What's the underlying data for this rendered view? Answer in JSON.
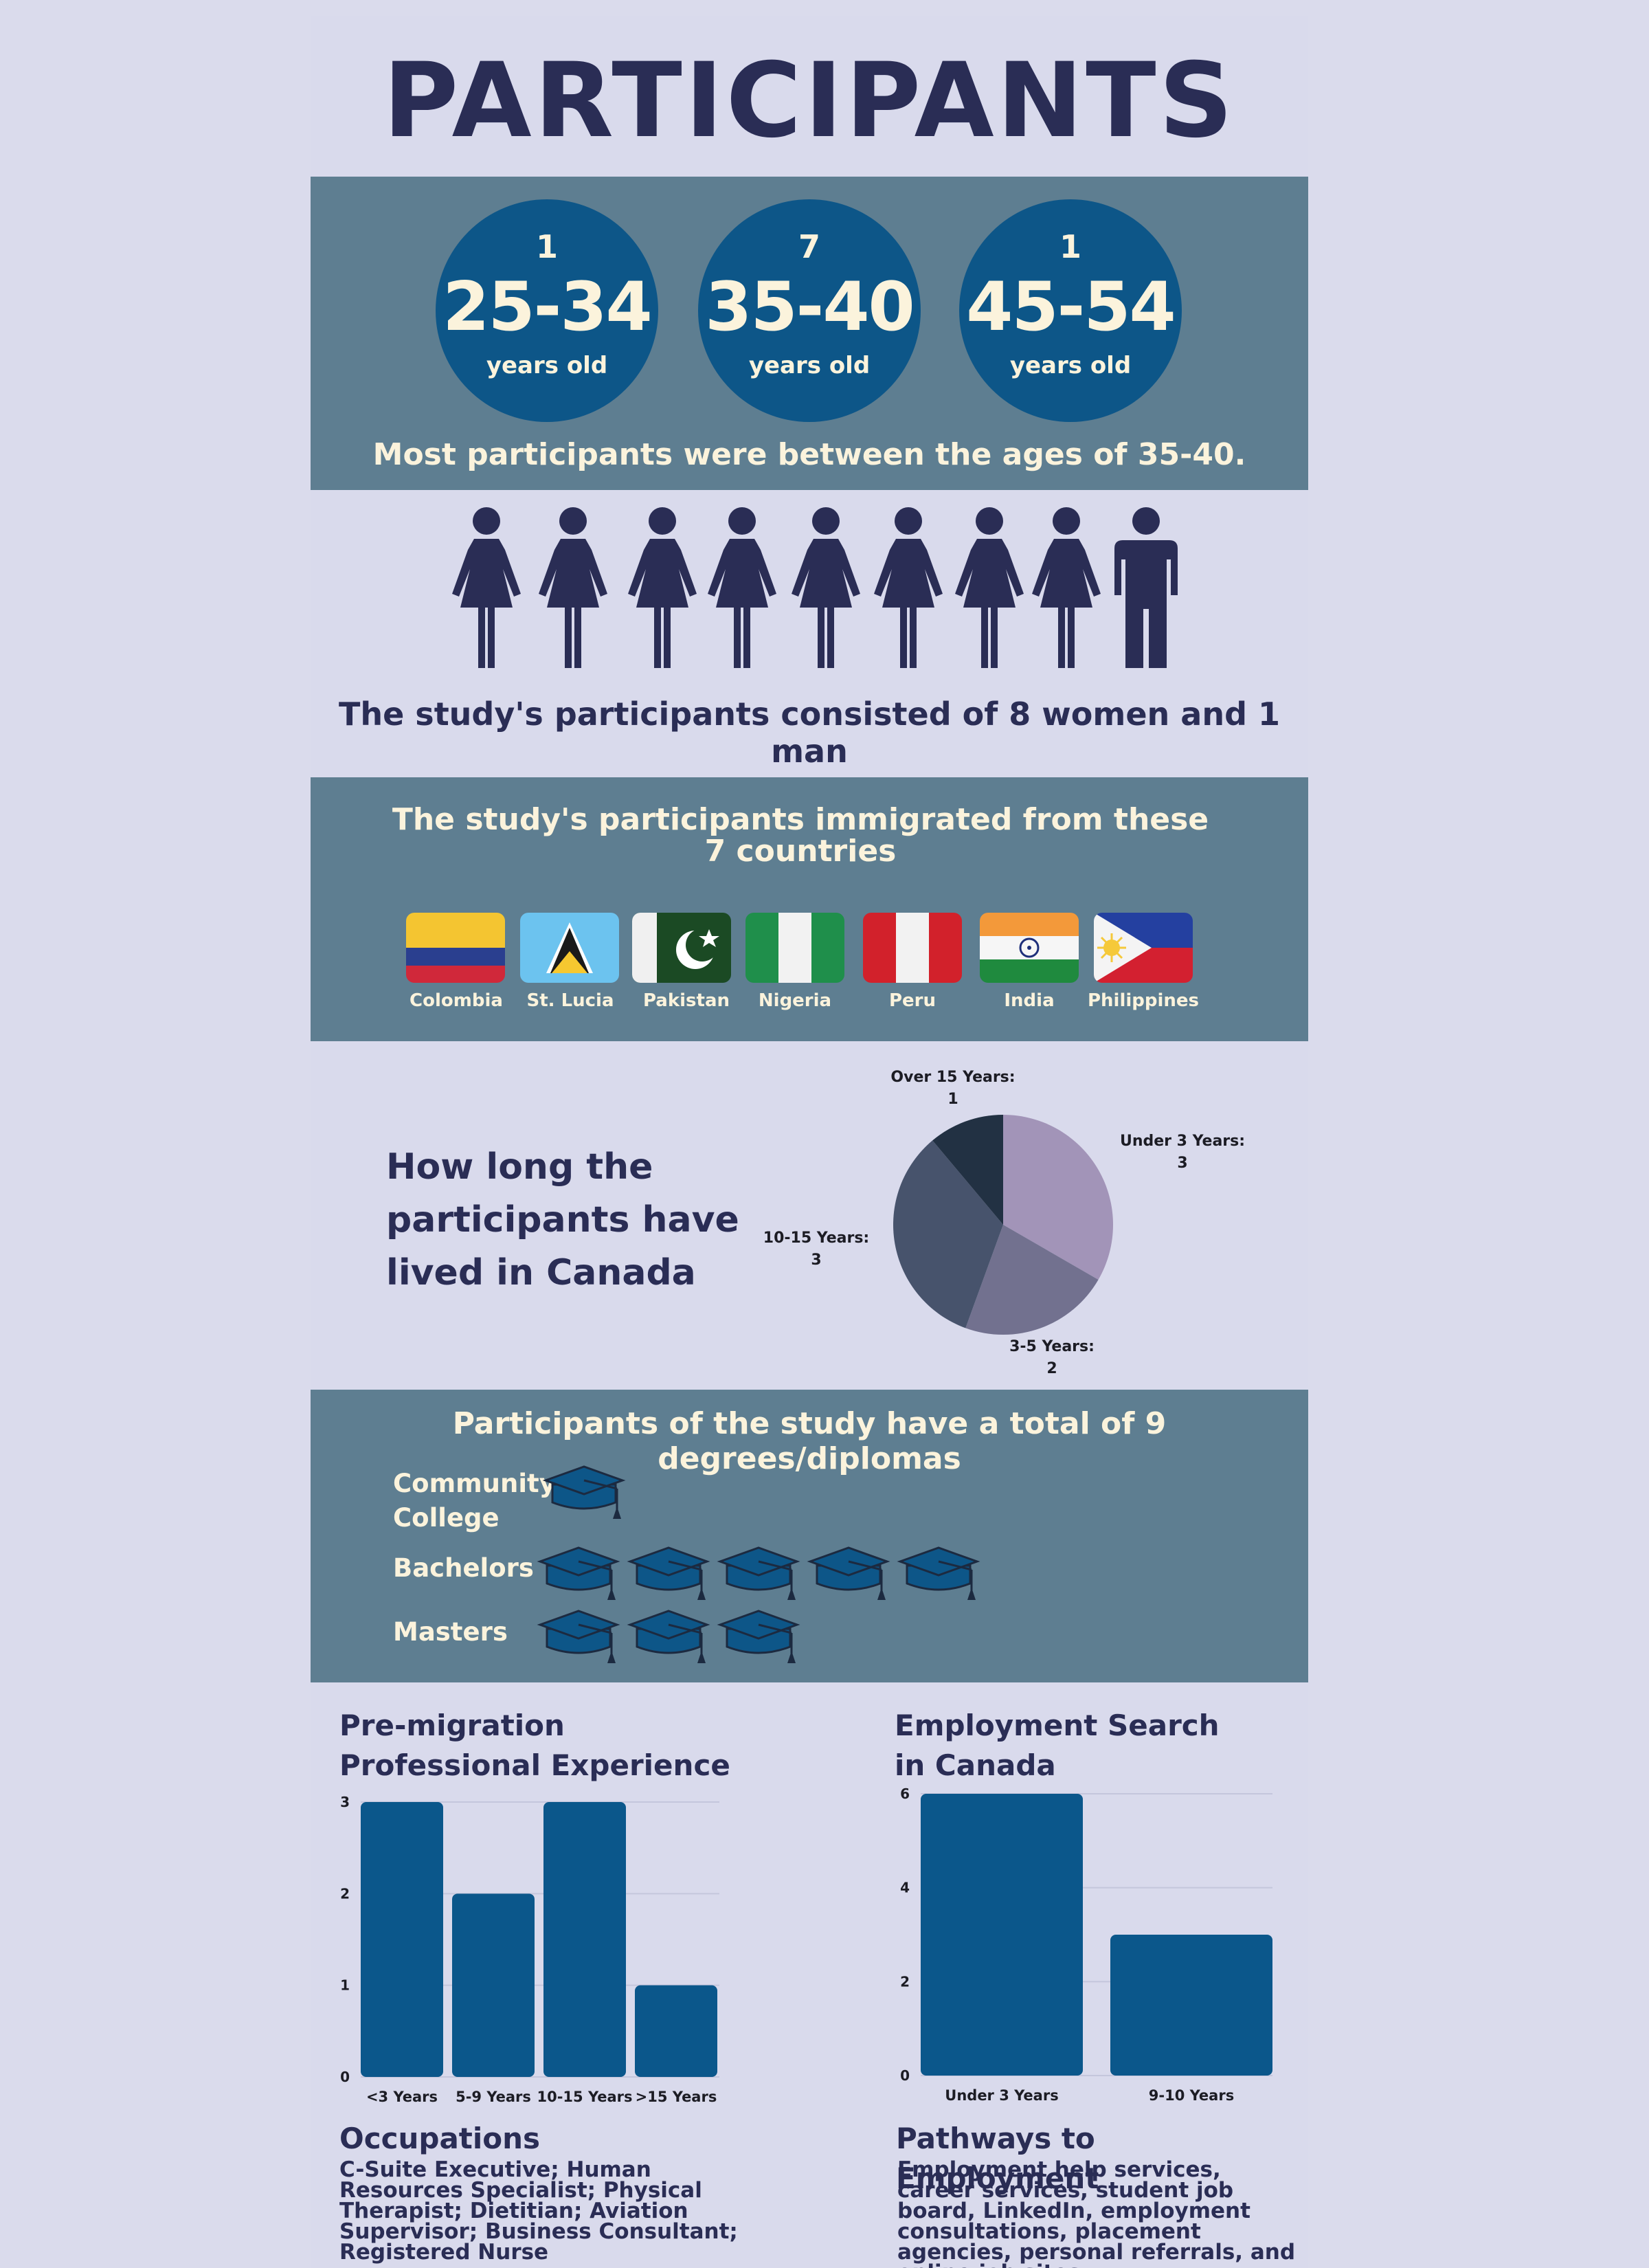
{
  "title": "PARTICIPANTS",
  "ages": [
    {
      "count": "1",
      "range": "25-34",
      "unit": "years old"
    },
    {
      "count": "7",
      "range": "35-40",
      "unit": "years old"
    },
    {
      "count": "1",
      "range": "45-54",
      "unit": "years old"
    }
  ],
  "age_caption": "Most participants were between the ages of 35-40.",
  "gender": {
    "women": 8,
    "men": 1,
    "caption": "The study's participants consisted of 8 women and 1 man"
  },
  "countries": {
    "heading": "The study's participants immigrated from these 7 countries",
    "items": [
      "Colombia",
      "St. Lucia",
      "Pakistan",
      "Nigeria",
      "Peru",
      "India",
      "Philippines"
    ]
  },
  "residence": {
    "heading": "How long the participants have lived in Canada",
    "slices": [
      {
        "label": "Under 3 Years:",
        "value": 3,
        "color": "#a294b8"
      },
      {
        "label": "3-5 Years:",
        "value": 2,
        "color": "#72718f"
      },
      {
        "label": "10-15 Years:",
        "value": 3,
        "color": "#47536c"
      },
      {
        "label": "Over 15 Years:",
        "value": 1,
        "color": "#223143"
      }
    ]
  },
  "degrees": {
    "heading": "Participants of the study have a total of 9 degrees/diplomas",
    "rows": [
      {
        "label": "Community College",
        "count": 1
      },
      {
        "label": "Bachelors",
        "count": 5
      },
      {
        "label": "Masters",
        "count": 3
      }
    ]
  },
  "chart_data": [
    {
      "type": "bar",
      "title": "Pre-migration Professional Experience",
      "categories": [
        "<3 Years",
        "5-9 Years",
        "10-15 Years",
        ">15 Years"
      ],
      "values": [
        3,
        2,
        3,
        1
      ],
      "yticks": [
        0,
        1,
        2,
        3
      ],
      "ylim": [
        0,
        3
      ],
      "color": "#0b578b"
    },
    {
      "type": "bar",
      "title": "Employment Search in Canada",
      "categories": [
        "Under 3 Years",
        "9-10 Years"
      ],
      "values": [
        6,
        3
      ],
      "yticks": [
        0,
        2,
        4,
        6
      ],
      "ylim": [
        0,
        6
      ],
      "color": "#0b578b"
    }
  ],
  "occupations": {
    "heading": "Occupations",
    "text": "C-Suite Executive; Human Resources Specialist; Physical Therapist; Dietitian; Aviation Supervisor; Business Consultant; Registered Nurse"
  },
  "pathways": {
    "heading": "Pathways to Employment",
    "text": "Employment help services, career services, student job board, LinkedIn, employment consultations, placement agencies, personal referrals, and online job sites."
  },
  "colors": {
    "navy": "#2a2d55",
    "band": "#5e7e91",
    "circle": "#0d5688",
    "cream": "#fbf3dc",
    "bar": "#0b578b"
  }
}
